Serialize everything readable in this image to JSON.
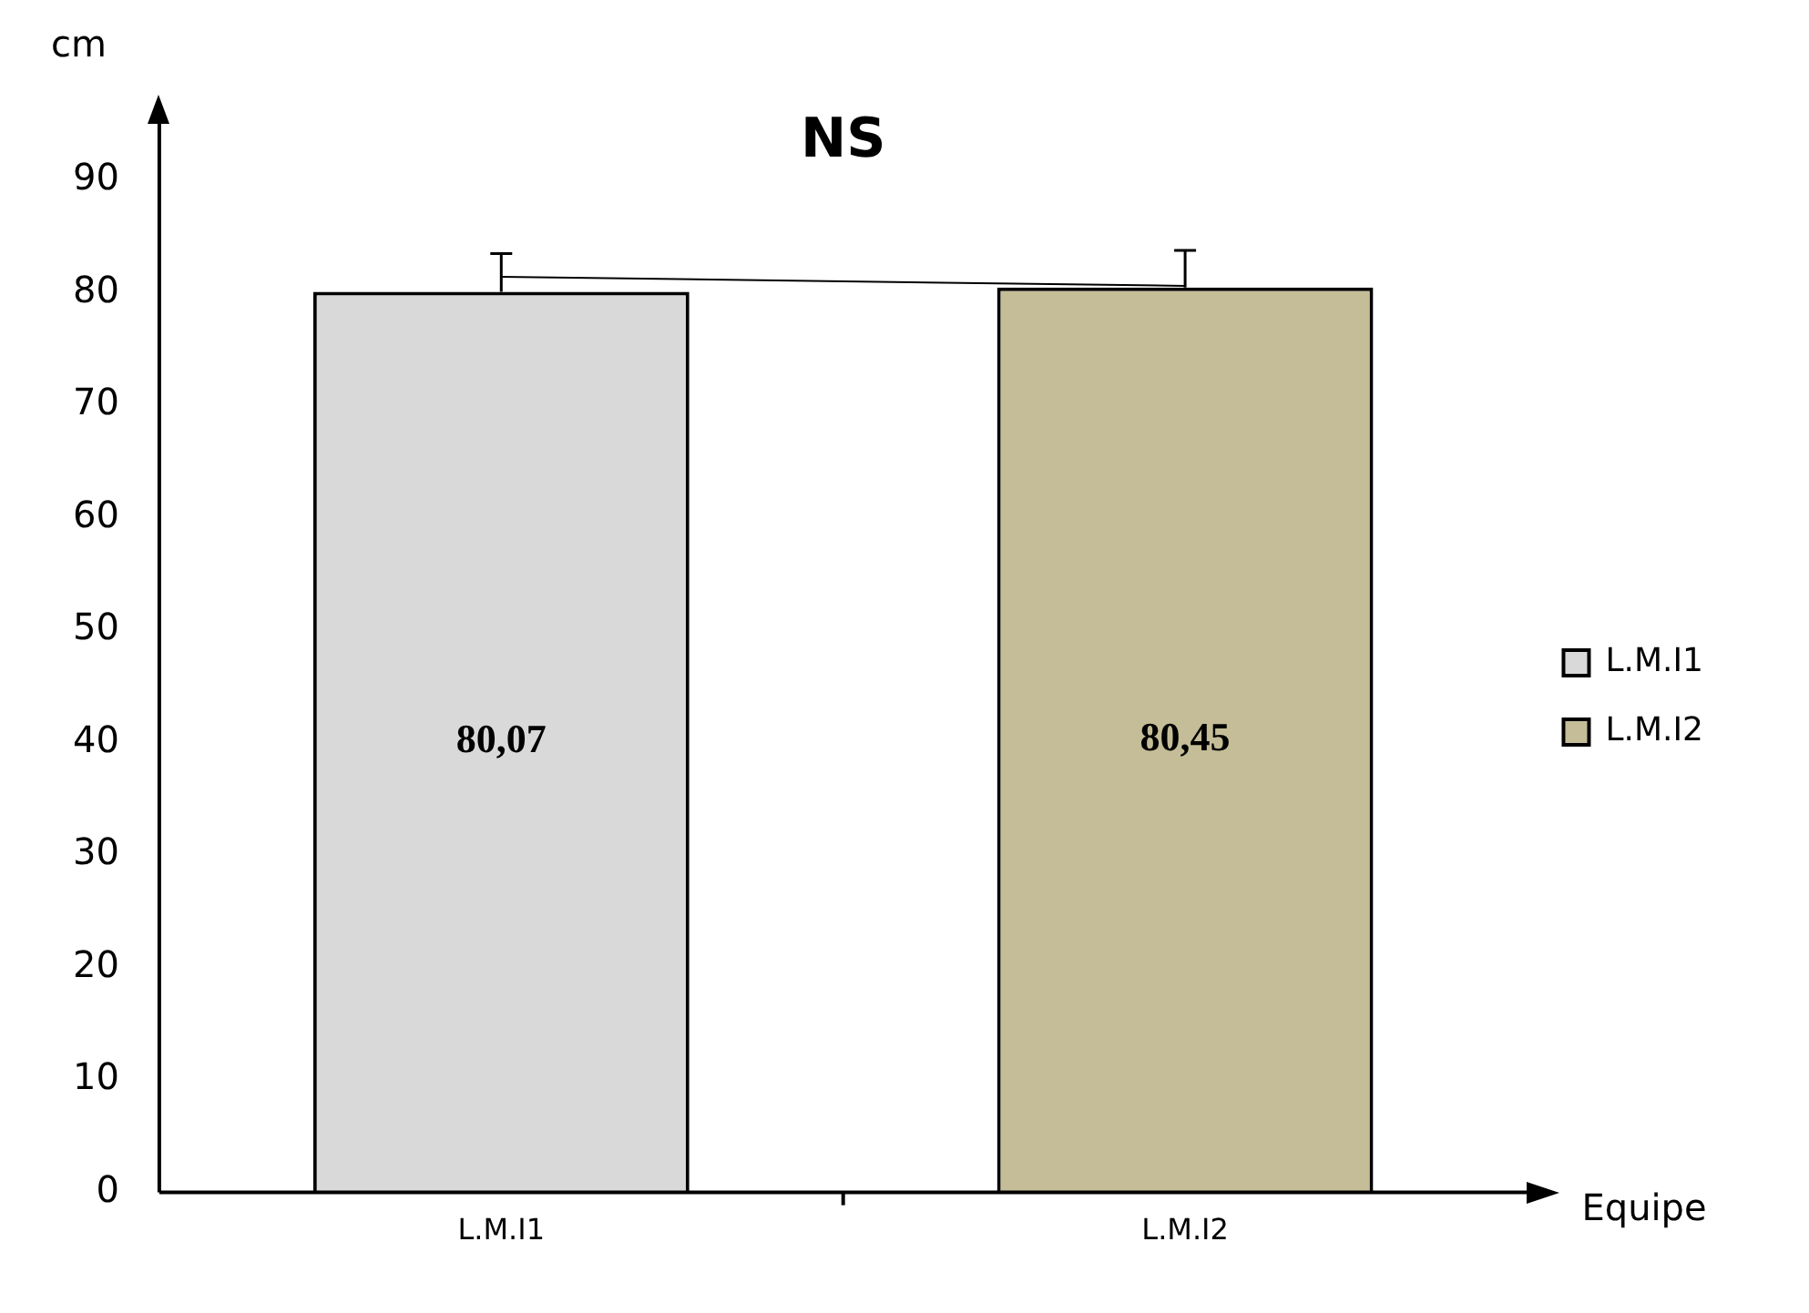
{
  "chart_data": {
    "type": "bar",
    "xlabel": "Equipe",
    "ylabel": "cm",
    "annotations": [
      "NS"
    ],
    "categories": [
      "L.M.I1",
      "L.M.I2"
    ],
    "series": [
      {
        "name": "L.M.I1",
        "color": "#d9d9d9",
        "values": [
          80.07,
          null
        ],
        "errors": [
          3.4,
          null
        ],
        "value_labels": [
          "80,07",
          null
        ]
      },
      {
        "name": "L.M.I2",
        "color": "#c4bd97",
        "values": [
          null,
          80.45
        ],
        "errors": [
          null,
          3.3
        ],
        "value_labels": [
          null,
          "80,45"
        ]
      },
      {
        "type": "line",
        "color": "#000000",
        "marker": "none",
        "values": [
          81.4,
          80.6
        ]
      }
    ],
    "ylim": [
      0,
      95
    ],
    "yticks": [
      0,
      10,
      20,
      30,
      40,
      50,
      60,
      70,
      80,
      90
    ],
    "grid": false,
    "legend": "right"
  }
}
